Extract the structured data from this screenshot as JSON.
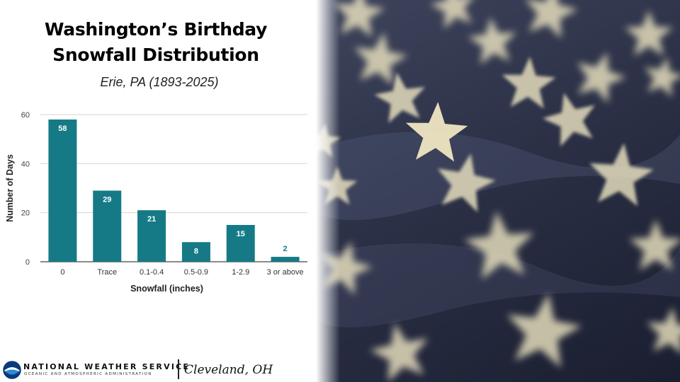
{
  "header": {
    "title_line1": "Washington’s Birthday",
    "title_line2": "Snowfall Distribution",
    "subtitle": "Erie, PA (1893-2025)"
  },
  "chart_data": {
    "type": "bar",
    "categories": [
      "0",
      "Trace",
      "0.1-0.4",
      "0.5-0.9",
      "1-2.9",
      "3 or above"
    ],
    "values": [
      58,
      29,
      21,
      8,
      15,
      2
    ],
    "title": "",
    "xlabel": "Snowfall (inches)",
    "ylabel": "Number of Days",
    "ylim": [
      0,
      60
    ],
    "yticks": [
      0,
      20,
      40,
      60
    ],
    "grid": true,
    "bar_color": "#157a86",
    "label_color_inside": "#ffffff",
    "label_color_outside": "#157a86"
  },
  "footer": {
    "agency_name": "NATIONAL WEATHER SERVICE",
    "agency_sub": "OCEANIC AND ATMOSPHERIC ADMINISTRATION",
    "office": "Cleveland, OH",
    "logo_icon": "noaa-logo-icon"
  },
  "photo": {
    "icon": "american-flag-stars-photo"
  }
}
